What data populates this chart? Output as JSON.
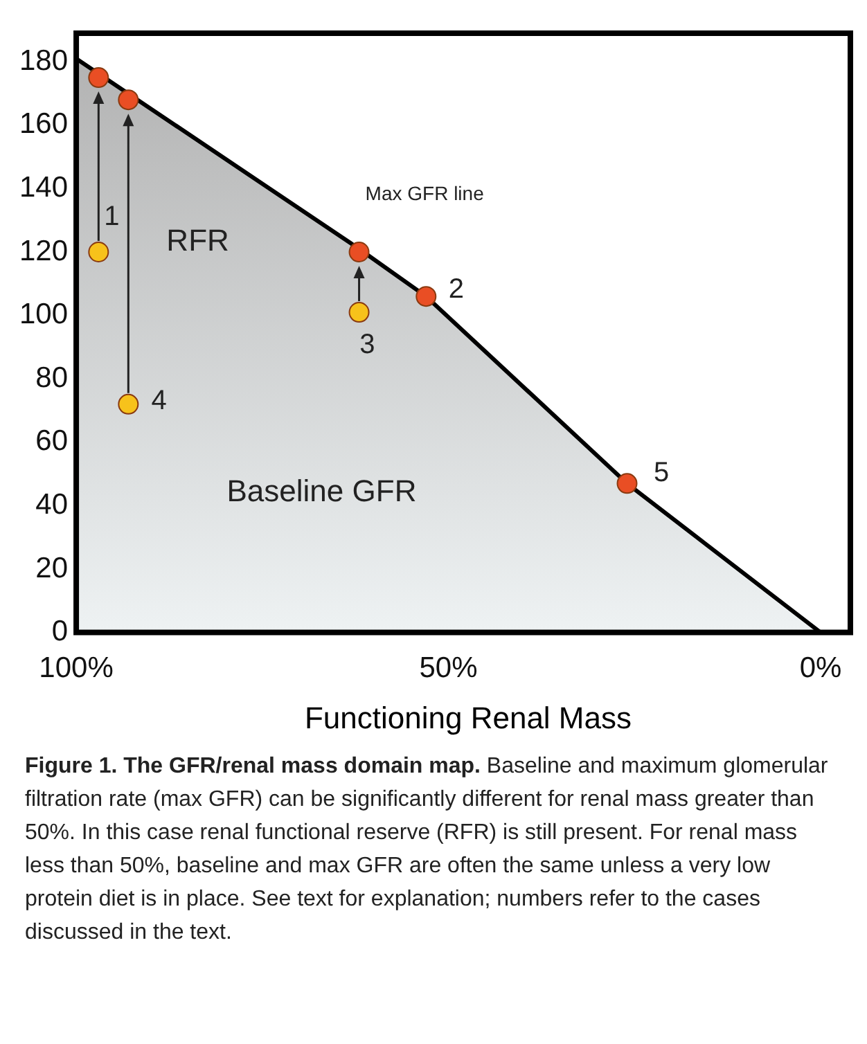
{
  "chart_data": {
    "type": "scatter",
    "xlabel": "Functioning Renal Mass",
    "xlim": [
      100,
      -4
    ],
    "xticks": [
      {
        "value": 100,
        "label": "100%"
      },
      {
        "value": 50,
        "label": "50%"
      },
      {
        "value": 0,
        "label": "0%"
      }
    ],
    "ylim": [
      0,
      189
    ],
    "yticks": [
      0,
      20,
      40,
      60,
      80,
      100,
      120,
      140,
      160,
      180
    ],
    "series": [
      {
        "type": "area",
        "color": "#000000",
        "x": [
          100,
          62,
          53,
          26,
          0
        ],
        "values": [
          181,
          121,
          106,
          47,
          0
        ]
      },
      {
        "color": "#f7c21b",
        "marker": "circle",
        "x": [
          97,
          93,
          62
        ],
        "values": [
          120,
          72,
          101
        ]
      },
      {
        "color": "#e94e24",
        "marker": "circle",
        "x": [
          97,
          93,
          62,
          53,
          26
        ],
        "values": [
          175,
          168,
          120,
          106,
          47
        ]
      }
    ],
    "annotations": [
      {
        "text": "1",
        "x": 97,
        "y": 120
      },
      {
        "text": "4",
        "x": 93,
        "y": 72
      },
      {
        "text": "3",
        "x": 62,
        "y": 101
      },
      "2",
      "5",
      "RFR",
      "Baseline GFR",
      "Max GFR line",
      "Figure 1. The GFR/renal mass domain map.",
      "Baseline and maximum glomerular filtration rate (max GFR) can be significantly different for renal mass greater than 50%. In this case renal functional reserve (RFR) is still present. For renal mass less than 50%, baseline and max GFR are often the same unless a very low protein diet is in place. See text for explanation; numbers refer to the cases discussed in the text."
    ]
  }
}
